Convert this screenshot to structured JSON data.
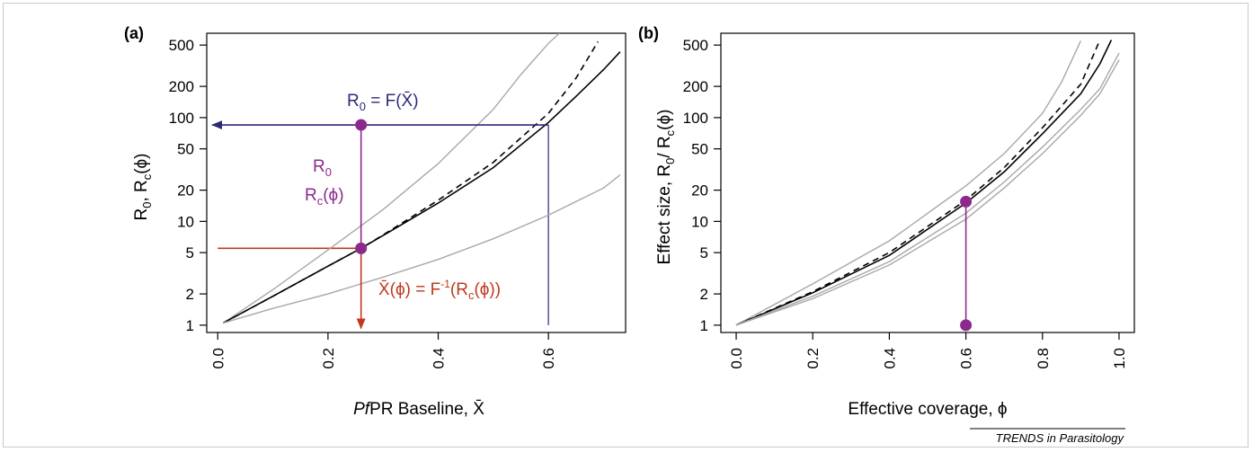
{
  "colors": {
    "purple": "#8b2a8b",
    "navy": "#2b2a7a",
    "blue_line": "#5b5ba8",
    "red": "#c0391e",
    "gray": "#a8a8a8",
    "black": "#000000"
  },
  "credit": "TRENDS in Parasitology",
  "chart_data": [
    {
      "type": "line",
      "panel_label": "(a)",
      "xlabel_italic": "Pf",
      "xlabel_rest": "PR Baseline, X̄",
      "ylabel": "R0, Rc(ϕ)",
      "yscale": "log",
      "xlim": [
        -0.02,
        0.74
      ],
      "ylim": [
        0.85,
        650
      ],
      "xticks": [
        0.0,
        0.2,
        0.4,
        0.6
      ],
      "xtick_labels": [
        "0.0",
        "0.2",
        "0.4",
        "0.6"
      ],
      "yticks": [
        1,
        2,
        5,
        10,
        20,
        50,
        100,
        200,
        500
      ],
      "ytick_labels": [
        "1",
        "2",
        "5",
        "10",
        "20",
        "50",
        "100",
        "200",
        "500"
      ],
      "series": [
        {
          "style": "gray",
          "x": [
            0.01,
            0.1,
            0.2,
            0.3,
            0.4,
            0.5,
            0.55,
            0.6,
            0.62
          ],
          "y": [
            1.05,
            2.2,
            5.3,
            13,
            36,
            120,
            260,
            520,
            650
          ]
        },
        {
          "style": "solid",
          "x": [
            0.01,
            0.1,
            0.2,
            0.26,
            0.3,
            0.4,
            0.5,
            0.6,
            0.65,
            0.7,
            0.73
          ],
          "y": [
            1.05,
            1.9,
            3.7,
            5.5,
            7.3,
            15,
            33,
            90,
            160,
            290,
            430
          ]
        },
        {
          "style": "dashed",
          "x": [
            0.01,
            0.1,
            0.2,
            0.26,
            0.3,
            0.4,
            0.5,
            0.6,
            0.65,
            0.69
          ],
          "y": [
            1.05,
            1.9,
            3.7,
            5.5,
            7.4,
            16,
            37,
            110,
            240,
            540
          ]
        },
        {
          "style": "gray",
          "x": [
            0.01,
            0.1,
            0.2,
            0.3,
            0.4,
            0.5,
            0.6,
            0.7,
            0.73
          ],
          "y": [
            1.05,
            1.45,
            2.0,
            2.9,
            4.3,
            6.8,
            11.5,
            21,
            28
          ]
        }
      ],
      "points": [
        {
          "x": 0.26,
          "y": 85
        },
        {
          "x": 0.26,
          "y": 5.5
        }
      ],
      "guides": {
        "blue_vertical_x": 0.6,
        "blue_arrow_y": 85,
        "blue_arrow_from_x": -0.01,
        "red_horizontal_y": 5.5,
        "red_horizontal_from_x": 0.0,
        "red_arrow_x": 0.26,
        "red_arrow_bottom_y": 0.93,
        "purple_x": 0.26
      },
      "annotations": {
        "blue": {
          "lhs": "R",
          "lhs_sub": "0",
          "rhs": " = F(X̄)"
        },
        "purple_top": {
          "main": "R",
          "sub": "0"
        },
        "purple_bottom": {
          "main": "R",
          "sub": "c",
          "rest": "(ϕ)"
        },
        "red": {
          "lhs": "X̄(ϕ) = F",
          "sup": "-1",
          "rhs": "(R",
          "sub": "c",
          "end": "(ϕ))"
        }
      }
    },
    {
      "type": "line",
      "panel_label": "(b)",
      "xlabel": "Effective coverage, ϕ",
      "ylabel": "Effect size, R0/ Rc(ϕ)",
      "yscale": "log",
      "xlim": [
        -0.04,
        1.04
      ],
      "ylim": [
        0.85,
        650
      ],
      "xticks": [
        0.0,
        0.2,
        0.4,
        0.6,
        0.8,
        1.0
      ],
      "xtick_labels": [
        "0.0",
        "0.2",
        "0.4",
        "0.6",
        "0.8",
        "1.0"
      ],
      "yticks": [
        1,
        2,
        5,
        10,
        20,
        50,
        100,
        200,
        500
      ],
      "ytick_labels": [
        "1",
        "2",
        "5",
        "10",
        "20",
        "50",
        "100",
        "200",
        "500"
      ],
      "series": [
        {
          "style": "gray",
          "x": [
            0.0,
            0.2,
            0.4,
            0.6,
            0.7,
            0.8,
            0.85,
            0.9
          ],
          "y": [
            1.0,
            2.5,
            6.5,
            22,
            45,
            110,
            220,
            550
          ]
        },
        {
          "style": "dashed",
          "x": [
            0.0,
            0.2,
            0.4,
            0.6,
            0.7,
            0.8,
            0.9,
            0.95
          ],
          "y": [
            1.0,
            2.1,
            5.0,
            16,
            33,
            80,
            210,
            560
          ]
        },
        {
          "style": "solid",
          "x": [
            0.0,
            0.2,
            0.4,
            0.6,
            0.7,
            0.8,
            0.9,
            0.95,
            0.98
          ],
          "y": [
            1.0,
            2.05,
            4.7,
            15,
            30,
            70,
            170,
            330,
            560
          ]
        },
        {
          "style": "gray",
          "x": [
            0.0,
            0.2,
            0.4,
            0.6,
            0.7,
            0.8,
            0.9,
            0.95,
            1.0
          ],
          "y": [
            1.0,
            1.9,
            4.1,
            12,
            24,
            52,
            120,
            190,
            420
          ]
        },
        {
          "style": "gray",
          "x": [
            0.0,
            0.2,
            0.4,
            0.6,
            0.7,
            0.8,
            0.9,
            0.95,
            1.0
          ],
          "y": [
            1.0,
            1.8,
            3.8,
            10.5,
            21,
            45,
            105,
            170,
            360
          ]
        }
      ],
      "points": [
        {
          "x": 0.6,
          "y": 15.5
        },
        {
          "x": 0.6,
          "y": 1.0
        }
      ],
      "guides": {
        "purple_x": 0.6
      }
    }
  ]
}
